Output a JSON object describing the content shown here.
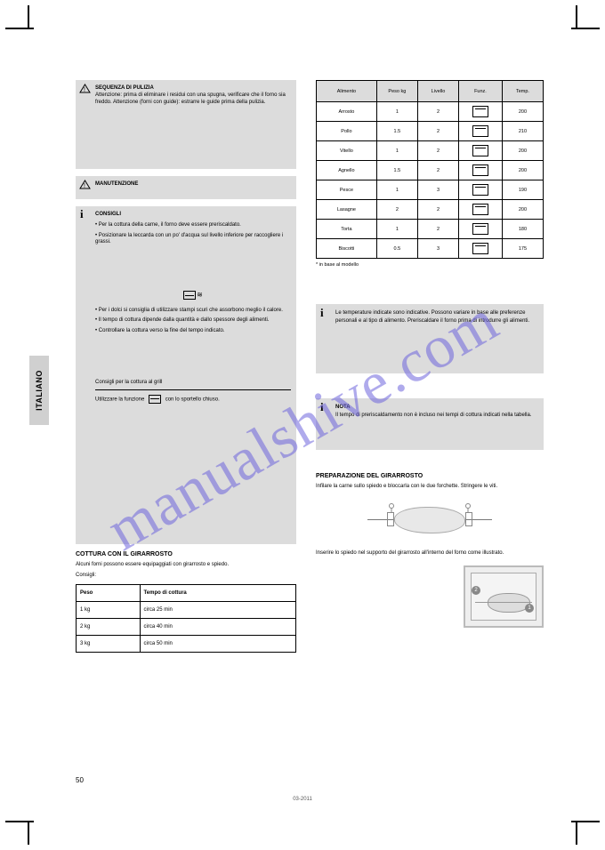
{
  "watermark": "manualshive.com",
  "language_tab": "ITALIANO",
  "page_number": "50",
  "footer_stamp": "03-2011",
  "left": {
    "warn1_title": "SEQUENZA DI PULIZIA",
    "warn1_body": "Attenzione: prima di eliminare i residui con una spugna, verificare che il forno sia freddo. Attenzione (forni con guide): estrarre le guide prima della pulizia.",
    "warn2_title": "MANUTENZIONE",
    "warn2_body": "",
    "info_title": "CONSIGLI",
    "info_p1": "• Per la cottura della carne, il forno deve essere preriscaldato.",
    "info_p2": "• Posizionare la leccarda con un po' d'acqua sul livello inferiore per raccogliere i grassi.",
    "info_oven_label": "Defrost",
    "info_p3": "• Per i dolci si consiglia di utilizzare stampi scuri che assorbono meglio il calore.",
    "info_p4": "• Il tempo di cottura dipende dalla quantità e dallo spessore degli alimenti.",
    "info_p5": "• Controllare la cottura verso la fine del tempo indicato.",
    "hr_label": "Consigli per la cottura al grill",
    "grill_p1": "Utilizzare la funzione",
    "grill_p2": "con lo sportello chiuso.",
    "spit_heading": "COTTURA CON IL GIRARROSTO",
    "spit_p1": "Alcuni forni possono essere equipaggiati con girarrosto e spiedo.",
    "spit_p2": "Consigli:",
    "table_h1": "Peso",
    "table_h2": "Tempo di cottura",
    "r1c1": "1 kg",
    "r1c2": "circa 25 min",
    "r2c1": "2 kg",
    "r2c2": "circa 40 min",
    "r3c1": "3 kg",
    "r3c2": "circa 50 min"
  },
  "right": {
    "th1": "Alimento",
    "th2": "Peso kg",
    "th3": "Livello",
    "th4": "Funz.",
    "th5": "Temp.",
    "rows": [
      {
        "c1": "Arrosto",
        "c2": "1",
        "c3": "2",
        "c5": "200"
      },
      {
        "c1": "Pollo",
        "c2": "1.5",
        "c3": "2",
        "c5": "210"
      },
      {
        "c1": "Vitello",
        "c2": "1",
        "c3": "2",
        "c5": "200"
      },
      {
        "c1": "Agnello",
        "c2": "1.5",
        "c3": "2",
        "c5": "200"
      },
      {
        "c1": "Pesce",
        "c2": "1",
        "c3": "3",
        "c5": "190"
      },
      {
        "c1": "Lasagne",
        "c2": "2",
        "c3": "2",
        "c5": "200"
      },
      {
        "c1": "Torta",
        "c2": "1",
        "c3": "2",
        "c5": "180"
      },
      {
        "c1": "Biscotti",
        "c2": "0.5",
        "c3": "3",
        "c5": "175"
      }
    ],
    "note1": "* in base al modello",
    "info1": "Le temperature indicate sono indicative. Possono variare in base alle preferenze personali e al tipo di alimento. Preriscaldare il forno prima di introdurre gli alimenti.",
    "info2_title": "NOTA",
    "info2": "Il tempo di preriscaldamento non è incluso nei tempi di cottura indicati nella tabella.",
    "spit_section": "PREPARAZIONE DEL GIRARROSTO",
    "spit_text": "Infilare la carne sullo spiedo e bloccarla con le due forchette. Stringere le viti.",
    "insert_text": "Inserire lo spiedo nel supporto del girarrosto all'interno del forno come illustrato."
  }
}
